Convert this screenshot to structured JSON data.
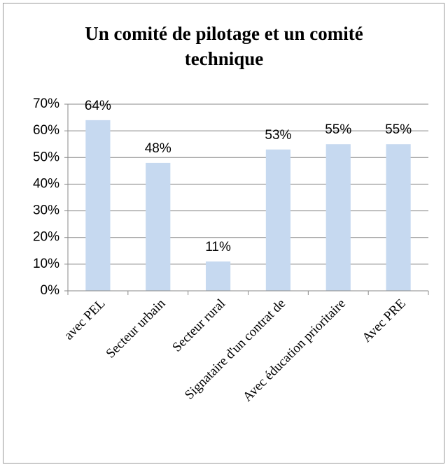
{
  "chart_data": {
    "type": "bar",
    "title": "Un comité de pilotage et un comité technique",
    "categories": [
      "avec PEL",
      "Secteur urbain",
      "Secteur rural",
      "Signataire d'un contrat de",
      "Avec éducation prioritaire",
      "Avec PRE"
    ],
    "values": [
      64,
      48,
      11,
      53,
      55,
      55
    ],
    "value_labels": [
      "64%",
      "48%",
      "11%",
      "53%",
      "55%",
      "55%"
    ],
    "color": "#c6d9f0",
    "ylim": [
      0,
      70
    ],
    "yticks": [
      {
        "value": 0,
        "label": "0%"
      },
      {
        "value": 10,
        "label": "10%"
      },
      {
        "value": 20,
        "label": "20%"
      },
      {
        "value": 30,
        "label": "30%"
      },
      {
        "value": 40,
        "label": "40%"
      },
      {
        "value": 50,
        "label": "50%"
      },
      {
        "value": 60,
        "label": "60%"
      },
      {
        "value": 70,
        "label": "70%"
      }
    ],
    "grid": true
  }
}
